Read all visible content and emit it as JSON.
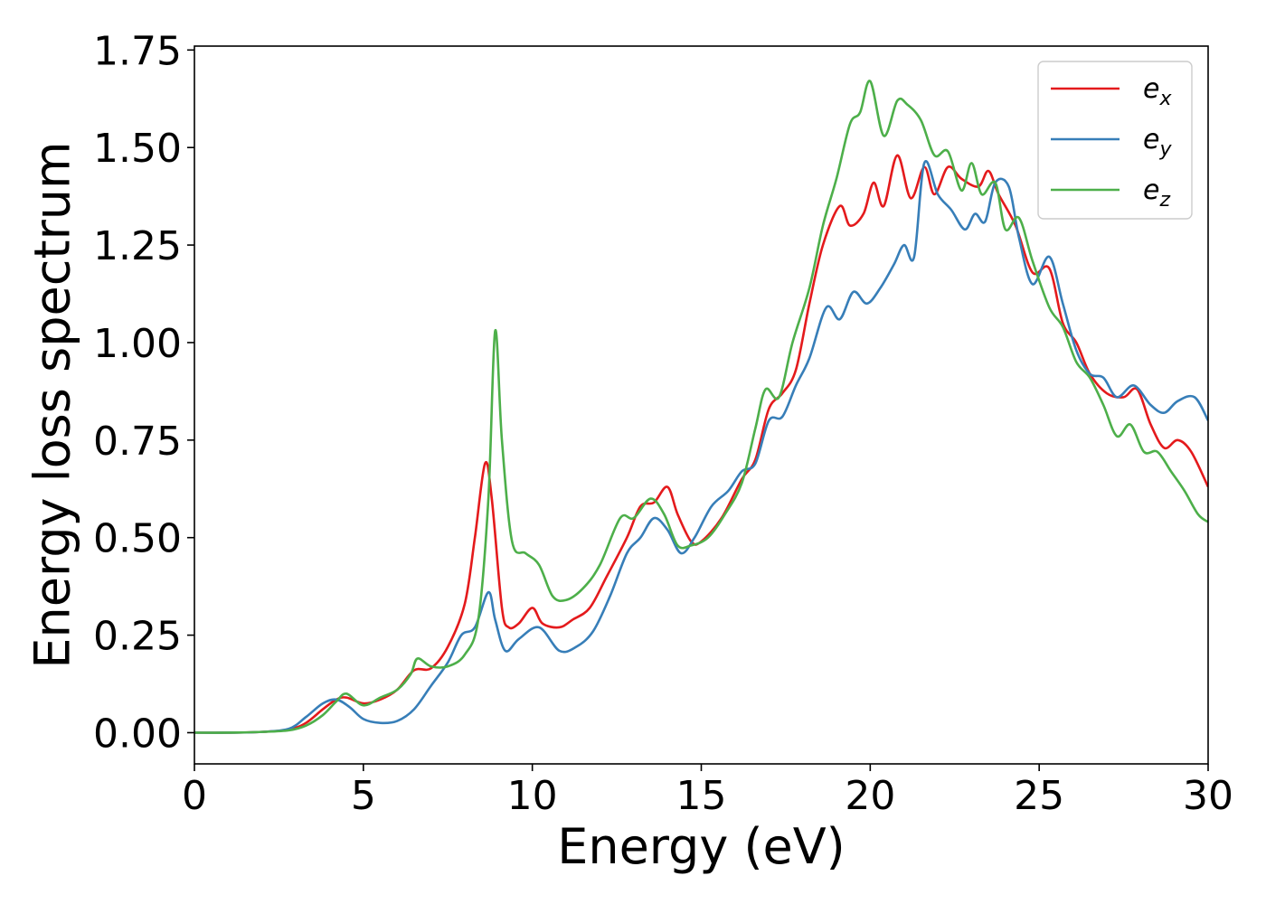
{
  "chart_data": {
    "type": "line",
    "title": "",
    "xlabel": "Energy (eV)",
    "ylabel": "Energy loss spectrum",
    "xlim": [
      0,
      30
    ],
    "ylim": [
      -0.08,
      1.76
    ],
    "xticks": [
      0,
      5,
      10,
      15,
      20,
      25,
      30
    ],
    "yticks": [
      0.0,
      0.25,
      0.5,
      0.75,
      1.0,
      1.25,
      1.5,
      1.75
    ],
    "xtick_labels": [
      "0",
      "5",
      "10",
      "15",
      "20",
      "25",
      "30"
    ],
    "ytick_labels": [
      "0.00",
      "0.25",
      "0.50",
      "0.75",
      "1.00",
      "1.25",
      "1.50",
      "1.75"
    ],
    "grid": false,
    "legend_position": "top-right",
    "series": [
      {
        "name": "e",
        "subscript": "x",
        "color": "#e41a1c",
        "points": [
          [
            0,
            0.0
          ],
          [
            1,
            0.0
          ],
          [
            2,
            0.002
          ],
          [
            2.8,
            0.008
          ],
          [
            3.3,
            0.025
          ],
          [
            3.8,
            0.06
          ],
          [
            4.2,
            0.085
          ],
          [
            4.5,
            0.09
          ],
          [
            5.0,
            0.075
          ],
          [
            5.5,
            0.085
          ],
          [
            6.0,
            0.11
          ],
          [
            6.5,
            0.16
          ],
          [
            7.0,
            0.165
          ],
          [
            7.5,
            0.22
          ],
          [
            8.0,
            0.33
          ],
          [
            8.3,
            0.5
          ],
          [
            8.6,
            0.69
          ],
          [
            8.8,
            0.6
          ],
          [
            9.1,
            0.32
          ],
          [
            9.3,
            0.27
          ],
          [
            9.6,
            0.28
          ],
          [
            10.0,
            0.32
          ],
          [
            10.3,
            0.28
          ],
          [
            10.8,
            0.27
          ],
          [
            11.2,
            0.29
          ],
          [
            11.7,
            0.32
          ],
          [
            12.2,
            0.4
          ],
          [
            12.8,
            0.5
          ],
          [
            13.2,
            0.58
          ],
          [
            13.6,
            0.59
          ],
          [
            14.0,
            0.63
          ],
          [
            14.3,
            0.56
          ],
          [
            14.7,
            0.49
          ],
          [
            15.0,
            0.49
          ],
          [
            15.6,
            0.55
          ],
          [
            16.2,
            0.65
          ],
          [
            16.6,
            0.7
          ],
          [
            17.0,
            0.83
          ],
          [
            17.4,
            0.87
          ],
          [
            17.8,
            0.93
          ],
          [
            18.2,
            1.1
          ],
          [
            18.6,
            1.25
          ],
          [
            19.1,
            1.35
          ],
          [
            19.4,
            1.3
          ],
          [
            19.8,
            1.33
          ],
          [
            20.1,
            1.41
          ],
          [
            20.4,
            1.35
          ],
          [
            20.8,
            1.48
          ],
          [
            21.2,
            1.37
          ],
          [
            21.6,
            1.45
          ],
          [
            21.9,
            1.38
          ],
          [
            22.3,
            1.45
          ],
          [
            22.7,
            1.42
          ],
          [
            23.2,
            1.4
          ],
          [
            23.5,
            1.44
          ],
          [
            23.8,
            1.38
          ],
          [
            24.3,
            1.3
          ],
          [
            24.8,
            1.18
          ],
          [
            25.3,
            1.19
          ],
          [
            25.7,
            1.05
          ],
          [
            26.1,
            1.0
          ],
          [
            26.5,
            0.92
          ],
          [
            27.0,
            0.87
          ],
          [
            27.5,
            0.86
          ],
          [
            27.9,
            0.88
          ],
          [
            28.3,
            0.79
          ],
          [
            28.7,
            0.73
          ],
          [
            29.1,
            0.75
          ],
          [
            29.5,
            0.72
          ],
          [
            30.0,
            0.63
          ]
        ]
      },
      {
        "name": "e",
        "subscript": "y",
        "color": "#377eb8",
        "points": [
          [
            0,
            0.0
          ],
          [
            1,
            0.0
          ],
          [
            2,
            0.002
          ],
          [
            2.8,
            0.01
          ],
          [
            3.3,
            0.04
          ],
          [
            3.8,
            0.075
          ],
          [
            4.2,
            0.085
          ],
          [
            4.6,
            0.065
          ],
          [
            5.0,
            0.035
          ],
          [
            5.5,
            0.025
          ],
          [
            6.0,
            0.03
          ],
          [
            6.5,
            0.06
          ],
          [
            7.0,
            0.12
          ],
          [
            7.5,
            0.18
          ],
          [
            7.9,
            0.25
          ],
          [
            8.3,
            0.27
          ],
          [
            8.7,
            0.36
          ],
          [
            8.9,
            0.29
          ],
          [
            9.2,
            0.21
          ],
          [
            9.6,
            0.24
          ],
          [
            10.2,
            0.27
          ],
          [
            10.8,
            0.21
          ],
          [
            11.3,
            0.22
          ],
          [
            11.8,
            0.26
          ],
          [
            12.3,
            0.35
          ],
          [
            12.8,
            0.46
          ],
          [
            13.2,
            0.5
          ],
          [
            13.6,
            0.55
          ],
          [
            14.0,
            0.52
          ],
          [
            14.4,
            0.46
          ],
          [
            14.8,
            0.5
          ],
          [
            15.3,
            0.58
          ],
          [
            15.8,
            0.62
          ],
          [
            16.2,
            0.67
          ],
          [
            16.6,
            0.69
          ],
          [
            17.0,
            0.8
          ],
          [
            17.4,
            0.81
          ],
          [
            17.8,
            0.89
          ],
          [
            18.2,
            0.96
          ],
          [
            18.7,
            1.09
          ],
          [
            19.1,
            1.06
          ],
          [
            19.5,
            1.13
          ],
          [
            19.9,
            1.1
          ],
          [
            20.3,
            1.14
          ],
          [
            20.7,
            1.2
          ],
          [
            21.0,
            1.25
          ],
          [
            21.3,
            1.22
          ],
          [
            21.6,
            1.46
          ],
          [
            22.0,
            1.38
          ],
          [
            22.4,
            1.34
          ],
          [
            22.8,
            1.29
          ],
          [
            23.1,
            1.33
          ],
          [
            23.4,
            1.31
          ],
          [
            23.7,
            1.41
          ],
          [
            24.1,
            1.4
          ],
          [
            24.4,
            1.27
          ],
          [
            24.8,
            1.15
          ],
          [
            25.3,
            1.22
          ],
          [
            25.7,
            1.1
          ],
          [
            26.1,
            0.98
          ],
          [
            26.5,
            0.92
          ],
          [
            26.9,
            0.91
          ],
          [
            27.3,
            0.86
          ],
          [
            27.8,
            0.89
          ],
          [
            28.3,
            0.84
          ],
          [
            28.7,
            0.82
          ],
          [
            29.1,
            0.85
          ],
          [
            29.6,
            0.86
          ],
          [
            30.0,
            0.8
          ]
        ]
      },
      {
        "name": "e",
        "subscript": "z",
        "color": "#4daf4a",
        "points": [
          [
            0,
            0.0
          ],
          [
            1,
            0.0
          ],
          [
            2,
            0.002
          ],
          [
            2.8,
            0.006
          ],
          [
            3.3,
            0.018
          ],
          [
            3.8,
            0.045
          ],
          [
            4.2,
            0.08
          ],
          [
            4.5,
            0.1
          ],
          [
            5.0,
            0.07
          ],
          [
            5.5,
            0.09
          ],
          [
            6.0,
            0.11
          ],
          [
            6.4,
            0.15
          ],
          [
            6.6,
            0.19
          ],
          [
            7.0,
            0.17
          ],
          [
            7.5,
            0.17
          ],
          [
            8.0,
            0.2
          ],
          [
            8.4,
            0.29
          ],
          [
            8.7,
            0.6
          ],
          [
            8.9,
            1.03
          ],
          [
            9.1,
            0.75
          ],
          [
            9.4,
            0.49
          ],
          [
            9.8,
            0.46
          ],
          [
            10.2,
            0.43
          ],
          [
            10.6,
            0.35
          ],
          [
            11.0,
            0.34
          ],
          [
            11.5,
            0.37
          ],
          [
            12.0,
            0.43
          ],
          [
            12.6,
            0.55
          ],
          [
            13.0,
            0.55
          ],
          [
            13.5,
            0.6
          ],
          [
            13.9,
            0.56
          ],
          [
            14.3,
            0.48
          ],
          [
            14.7,
            0.48
          ],
          [
            15.2,
            0.5
          ],
          [
            15.7,
            0.56
          ],
          [
            16.2,
            0.64
          ],
          [
            16.6,
            0.78
          ],
          [
            16.9,
            0.88
          ],
          [
            17.3,
            0.86
          ],
          [
            17.7,
            1.0
          ],
          [
            18.2,
            1.14
          ],
          [
            18.6,
            1.3
          ],
          [
            19.0,
            1.42
          ],
          [
            19.4,
            1.56
          ],
          [
            19.7,
            1.59
          ],
          [
            20.0,
            1.67
          ],
          [
            20.4,
            1.53
          ],
          [
            20.8,
            1.62
          ],
          [
            21.1,
            1.61
          ],
          [
            21.5,
            1.57
          ],
          [
            21.9,
            1.48
          ],
          [
            22.3,
            1.49
          ],
          [
            22.7,
            1.39
          ],
          [
            23.0,
            1.46
          ],
          [
            23.3,
            1.38
          ],
          [
            23.7,
            1.41
          ],
          [
            24.0,
            1.29
          ],
          [
            24.4,
            1.32
          ],
          [
            24.8,
            1.21
          ],
          [
            25.3,
            1.09
          ],
          [
            25.7,
            1.04
          ],
          [
            26.1,
            0.95
          ],
          [
            26.5,
            0.91
          ],
          [
            26.9,
            0.84
          ],
          [
            27.3,
            0.76
          ],
          [
            27.7,
            0.79
          ],
          [
            28.1,
            0.72
          ],
          [
            28.5,
            0.72
          ],
          [
            28.9,
            0.67
          ],
          [
            29.3,
            0.62
          ],
          [
            29.7,
            0.56
          ],
          [
            30.0,
            0.54
          ]
        ]
      }
    ]
  }
}
